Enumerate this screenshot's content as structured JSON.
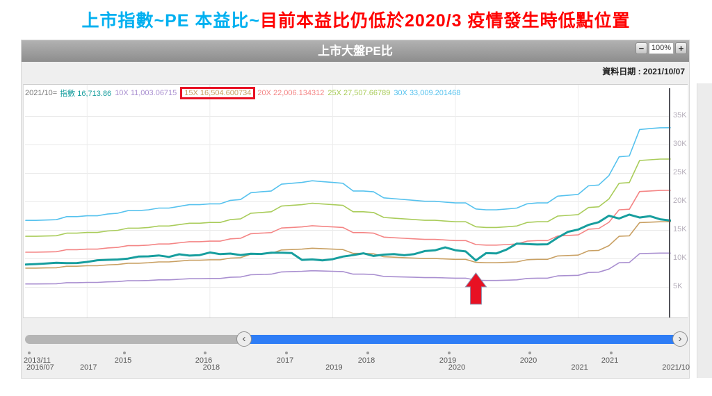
{
  "main_title": {
    "segments": [
      {
        "text": "上市指數~PE 本益比~",
        "color": "#00b0f0"
      },
      {
        "text": "目前本益比仍低於2020/3 疫情發生時低點位置",
        "color": "#ff0000"
      }
    ]
  },
  "widget": {
    "header": {
      "title": "上市大盤PE比",
      "zoom_out_label": "−",
      "zoom_level": "100%",
      "zoom_in_label": "+"
    },
    "date_label": "資料日期 : 2021/10/07"
  },
  "legend": {
    "prefix": "2021/10=",
    "highlight_box_color": "#e81123",
    "items": [
      {
        "name": "index",
        "label": "指數",
        "value": "16,713.86",
        "color": "#179e9e",
        "highlighted": false
      },
      {
        "name": "pe10x",
        "label": "10X",
        "value": "11,003.06715",
        "color": "#a98fd0",
        "highlighted": false
      },
      {
        "name": "pe15x",
        "label": "15X",
        "value": "16,504.600734",
        "color": "#c9a063",
        "highlighted": true
      },
      {
        "name": "pe20x",
        "label": "20X",
        "value": "22,006.134312",
        "color": "#f48585",
        "highlighted": false
      },
      {
        "name": "pe25x",
        "label": "25X",
        "value": "27,507.66789",
        "color": "#a9cc5a",
        "highlighted": false
      },
      {
        "name": "pe30x",
        "label": "30X",
        "value": "33,009.201468",
        "color": "#56c2ee",
        "highlighted": false
      }
    ]
  },
  "slider": {
    "track_color": "#b5b5b5",
    "selected_range_color": "#2e7df6",
    "left_handle_glyph": "‹",
    "right_handle_glyph": "›"
  },
  "mini_axis": {
    "labels": [
      "2013/11",
      "2015",
      "2016",
      "2017",
      "2018",
      "2019",
      "2020",
      "2021"
    ]
  },
  "chart_data": {
    "type": "line",
    "title": "上市大盤PE比",
    "xlabel": "",
    "ylabel": "",
    "y_axis_side": "right",
    "legend_position": "top-left",
    "grid": true,
    "y_range": [
      0,
      40000
    ],
    "y_ticks": [
      "5K",
      "10K",
      "15K",
      "20K",
      "25K",
      "30K",
      "35K"
    ],
    "x_label_ticks": [
      "2016/07",
      "2017",
      "2018",
      "2019",
      "2020",
      "2021",
      "2021/10"
    ],
    "cursor_month": "2021/10",
    "annotation": {
      "type": "arrow-up",
      "month": "2020/03",
      "color": "#e81123"
    },
    "months": [
      "2016/07",
      "2016/08",
      "2016/09",
      "2016/10",
      "2016/11",
      "2016/12",
      "2017/01",
      "2017/02",
      "2017/03",
      "2017/04",
      "2017/05",
      "2017/06",
      "2017/07",
      "2017/08",
      "2017/09",
      "2017/10",
      "2017/11",
      "2017/12",
      "2018/01",
      "2018/02",
      "2018/03",
      "2018/04",
      "2018/05",
      "2018/06",
      "2018/07",
      "2018/08",
      "2018/09",
      "2018/10",
      "2018/11",
      "2018/12",
      "2019/01",
      "2019/02",
      "2019/03",
      "2019/04",
      "2019/05",
      "2019/06",
      "2019/07",
      "2019/08",
      "2019/09",
      "2019/10",
      "2019/11",
      "2019/12",
      "2020/01",
      "2020/02",
      "2020/03",
      "2020/04",
      "2020/05",
      "2020/06",
      "2020/07",
      "2020/08",
      "2020/09",
      "2020/10",
      "2020/11",
      "2020/12",
      "2021/01",
      "2021/02",
      "2021/03",
      "2021/04",
      "2021/05",
      "2021/06",
      "2021/07",
      "2021/08",
      "2021/09",
      "2021/10"
    ],
    "series": [
      {
        "name": "10X",
        "color": "#a98fd0",
        "width": 1.6,
        "values": [
          5580,
          5580,
          5600,
          5620,
          5800,
          5800,
          5850,
          5850,
          5950,
          6000,
          6150,
          6150,
          6200,
          6300,
          6300,
          6400,
          6500,
          6500,
          6550,
          6550,
          6750,
          6800,
          7200,
          7250,
          7300,
          7700,
          7750,
          7800,
          7900,
          7850,
          7800,
          7750,
          7300,
          7300,
          7250,
          6900,
          6850,
          6800,
          6750,
          6700,
          6700,
          6650,
          6600,
          6600,
          6250,
          6200,
          6200,
          6250,
          6300,
          6550,
          6600,
          6600,
          7000,
          7050,
          7100,
          7600,
          7650,
          8200,
          9300,
          9350,
          10900,
          10950,
          11000,
          11003.07
        ]
      },
      {
        "name": "15X",
        "color": "#c9a063",
        "width": 1.6,
        "values": [
          8370,
          8370,
          8400,
          8430,
          8700,
          8700,
          8775,
          8775,
          8925,
          9000,
          9225,
          9225,
          9300,
          9450,
          9450,
          9600,
          9750,
          9750,
          9825,
          9825,
          10125,
          10200,
          10800,
          10875,
          10950,
          11550,
          11625,
          11700,
          11850,
          11775,
          11700,
          11625,
          10950,
          10950,
          10875,
          10350,
          10275,
          10200,
          10125,
          10050,
          10050,
          9975,
          9900,
          9900,
          9375,
          9300,
          9300,
          9375,
          9450,
          9825,
          9900,
          9900,
          10500,
          10575,
          10650,
          11400,
          11475,
          12300,
          13950,
          14025,
          16350,
          16425,
          16500,
          16504.6
        ]
      },
      {
        "name": "20X",
        "color": "#f48585",
        "width": 1.6,
        "values": [
          11160,
          11160,
          11200,
          11240,
          11600,
          11600,
          11700,
          11700,
          11900,
          12000,
          12300,
          12300,
          12400,
          12600,
          12600,
          12800,
          13000,
          13000,
          13100,
          13100,
          13500,
          13600,
          14400,
          14500,
          14600,
          15400,
          15500,
          15600,
          15800,
          15700,
          15600,
          15500,
          14600,
          14600,
          14500,
          13800,
          13700,
          13600,
          13500,
          13400,
          13400,
          13300,
          13200,
          13200,
          12500,
          12400,
          12400,
          12500,
          12600,
          13100,
          13200,
          13200,
          14000,
          14100,
          14200,
          15200,
          15300,
          16400,
          18600,
          18700,
          21800,
          21900,
          22000,
          22006.13
        ]
      },
      {
        "name": "25X",
        "color": "#a9cc5a",
        "width": 1.6,
        "values": [
          13950,
          13950,
          14000,
          14050,
          14500,
          14500,
          14625,
          14625,
          14875,
          15000,
          15375,
          15375,
          15500,
          15750,
          15750,
          16000,
          16250,
          16250,
          16375,
          16375,
          16875,
          17000,
          18000,
          18125,
          18250,
          19250,
          19375,
          19500,
          19750,
          19625,
          19500,
          19375,
          18250,
          18250,
          18125,
          17250,
          17125,
          17000,
          16875,
          16750,
          16750,
          16625,
          16500,
          16500,
          15625,
          15500,
          15500,
          15625,
          15750,
          16375,
          16500,
          16500,
          17500,
          17625,
          17750,
          19000,
          19125,
          20500,
          23250,
          23375,
          27250,
          27375,
          27500,
          27507.67
        ]
      },
      {
        "name": "30X",
        "color": "#56c2ee",
        "width": 1.6,
        "values": [
          16740,
          16740,
          16800,
          16860,
          17400,
          17400,
          17550,
          17550,
          17850,
          18000,
          18450,
          18450,
          18600,
          18900,
          18900,
          19200,
          19500,
          19500,
          19650,
          19650,
          20250,
          20400,
          21600,
          21750,
          21900,
          23100,
          23250,
          23400,
          23700,
          23550,
          23400,
          23250,
          21900,
          21900,
          21750,
          20700,
          20550,
          20400,
          20250,
          20100,
          20100,
          19950,
          19800,
          19800,
          18750,
          18600,
          18600,
          18750,
          18900,
          19650,
          19800,
          19800,
          21000,
          21150,
          21300,
          22800,
          22950,
          24600,
          27900,
          28050,
          32700,
          32850,
          33000,
          33009.2
        ]
      },
      {
        "name": "指數",
        "color": "#179e9e",
        "width": 3,
        "values": [
          8984,
          9069,
          9167,
          9290,
          9241,
          9254,
          9448,
          9750,
          9812,
          9872,
          10040,
          10395,
          10428,
          10586,
          10330,
          10794,
          10560,
          10643,
          11104,
          10815,
          10919,
          10658,
          10875,
          10837,
          11058,
          11064,
          11006,
          9802,
          9888,
          9727,
          9932,
          10389,
          10641,
          10967,
          10498,
          10731,
          10824,
          10618,
          10829,
          11358,
          11489,
          11997,
          11495,
          11292,
          9708,
          10992,
          10942,
          11621,
          12665,
          12591,
          12515,
          12546,
          13723,
          14732,
          15138,
          15953,
          16431,
          17566,
          17068,
          17755,
          17247,
          17490,
          16934,
          16713.86
        ]
      }
    ]
  }
}
